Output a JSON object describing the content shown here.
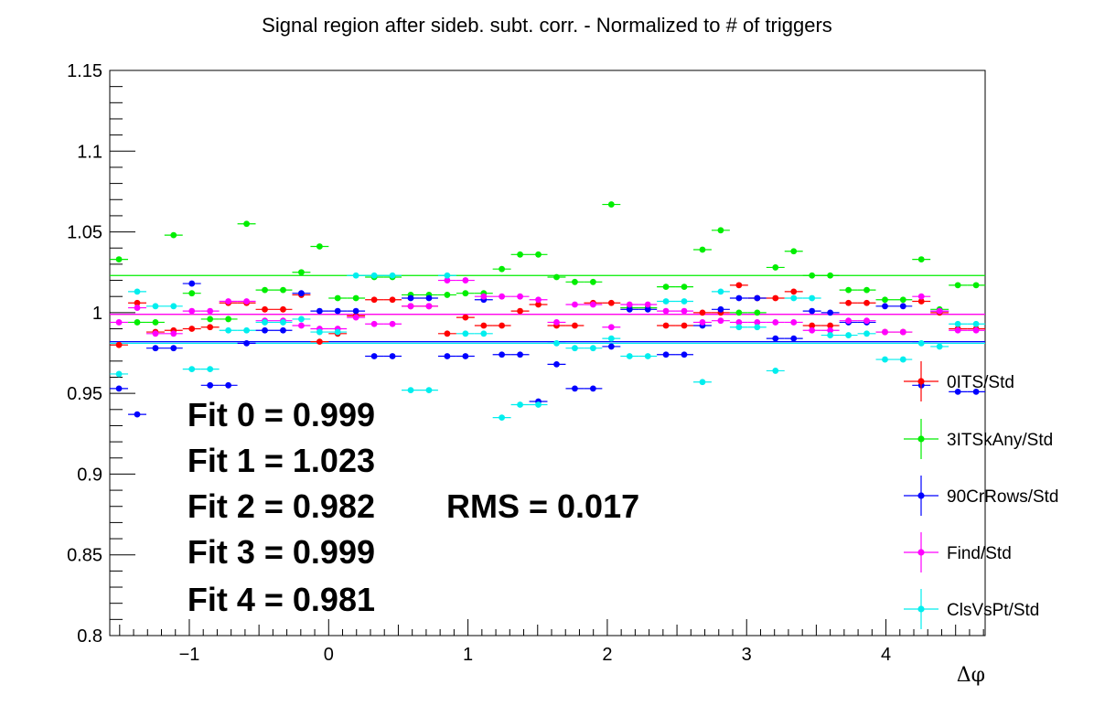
{
  "chart_data": {
    "type": "scatter",
    "title": "Signal region after sideb. subt. corr. - Normalized to # of triggers",
    "xlabel": "Δφ",
    "ylabel": "",
    "xlim": [
      -1.571,
      4.712
    ],
    "ylim": [
      0.8,
      1.15
    ],
    "x_major_ticks": [
      -1,
      0,
      1,
      2,
      3,
      4
    ],
    "x_tick_labels": [
      "−1",
      "0",
      "1",
      "2",
      "3",
      "4"
    ],
    "y_major_ticks": [
      0.8,
      0.85,
      0.9,
      0.95,
      1.0,
      1.05,
      1.1,
      1.15
    ],
    "y_tick_labels": [
      "0.8",
      "0.85",
      "0.9",
      "0.95",
      "1",
      "1.05",
      "1.1",
      "1.15"
    ],
    "bin_half_width": 0.0654,
    "x": [
      -1.505,
      -1.374,
      -1.243,
      -1.113,
      -0.982,
      -0.851,
      -0.72,
      -0.589,
      -0.458,
      -0.327,
      -0.196,
      -0.065,
      0.065,
      0.196,
      0.327,
      0.458,
      0.589,
      0.72,
      0.851,
      0.982,
      1.113,
      1.243,
      1.374,
      1.505,
      1.636,
      1.767,
      1.898,
      2.029,
      2.16,
      2.291,
      2.421,
      2.552,
      2.683,
      2.814,
      2.945,
      3.076,
      3.207,
      3.338,
      3.469,
      3.6,
      3.731,
      3.862,
      3.993,
      4.123,
      4.254,
      4.385,
      4.516,
      4.647
    ],
    "series": [
      {
        "name": "0ITS/Std",
        "color": "#ff0000",
        "fit": 0.999,
        "values": [
          0.98,
          1.006,
          0.988,
          0.989,
          0.99,
          0.991,
          1.006,
          1.006,
          1.002,
          1.002,
          1.011,
          0.982,
          0.987,
          0.998,
          1.008,
          1.008,
          1.004,
          1.004,
          0.987,
          0.997,
          0.992,
          0.992,
          1.001,
          1.005,
          0.992,
          0.992,
          1.006,
          1.006,
          1.003,
          1.003,
          0.992,
          0.992,
          1.0,
          1.0,
          1.017,
          1.009,
          1.009,
          1.013,
          0.992,
          0.992,
          1.006,
          1.006,
          0.988,
          0.988,
          1.007,
          1.0,
          0.99,
          0.99
        ]
      },
      {
        "name": "3ITSkAny/Std",
        "color": "#00ee00",
        "fit": 1.023,
        "values": [
          1.033,
          0.994,
          0.994,
          1.048,
          1.012,
          0.996,
          0.996,
          1.055,
          1.014,
          1.014,
          1.025,
          1.041,
          1.009,
          1.009,
          1.022,
          1.022,
          1.011,
          1.011,
          1.011,
          1.012,
          1.012,
          1.027,
          1.036,
          1.036,
          1.022,
          1.019,
          1.019,
          1.067,
          1.003,
          1.003,
          1.016,
          1.016,
          1.039,
          1.051,
          1.0,
          1.0,
          1.028,
          1.038,
          1.023,
          1.023,
          1.014,
          1.014,
          1.008,
          1.008,
          1.033,
          1.002,
          1.017,
          1.017
        ]
      },
      {
        "name": "90CrRows/Std",
        "color": "#0000ff",
        "fit": 0.982,
        "values": [
          0.953,
          0.937,
          0.978,
          0.978,
          1.018,
          0.955,
          0.955,
          0.981,
          0.989,
          0.989,
          1.012,
          1.001,
          1.001,
          1.001,
          0.973,
          0.973,
          1.009,
          1.009,
          0.973,
          0.973,
          1.008,
          0.974,
          0.974,
          0.945,
          0.968,
          0.953,
          0.953,
          0.979,
          1.002,
          1.002,
          0.974,
          0.974,
          0.992,
          1.002,
          1.009,
          1.009,
          0.984,
          0.984,
          1.001,
          1.0,
          0.994,
          0.994,
          1.004,
          1.004,
          0.955,
          1.001,
          0.951,
          0.951
        ]
      },
      {
        "name": "Find/Std",
        "color": "#ff00ff",
        "fit": 0.999,
        "values": [
          0.994,
          1.003,
          0.987,
          0.987,
          1.001,
          1.001,
          1.007,
          1.007,
          0.995,
          0.995,
          0.992,
          0.99,
          0.99,
          0.997,
          0.993,
          0.993,
          1.004,
          1.004,
          1.02,
          1.02,
          1.01,
          1.01,
          1.01,
          1.008,
          0.994,
          1.005,
          1.005,
          0.991,
          1.005,
          1.005,
          1.001,
          1.001,
          0.994,
          0.995,
          0.994,
          0.994,
          0.994,
          0.994,
          0.989,
          0.989,
          0.995,
          0.995,
          0.988,
          0.988,
          1.01,
          1.001,
          0.989,
          0.989
        ]
      },
      {
        "name": "ClsVsPt/Std",
        "color": "#00eeee",
        "fit": 0.981,
        "values": [
          0.962,
          1.013,
          1.004,
          1.004,
          0.965,
          0.965,
          0.989,
          0.989,
          0.994,
          0.994,
          0.996,
          0.988,
          0.988,
          1.023,
          1.023,
          1.023,
          0.952,
          0.952,
          1.023,
          0.987,
          0.987,
          0.935,
          0.943,
          0.943,
          0.981,
          0.978,
          0.978,
          0.984,
          0.973,
          0.973,
          1.007,
          1.007,
          0.957,
          1.013,
          0.991,
          0.991,
          0.964,
          1.009,
          1.009,
          0.986,
          0.986,
          0.987,
          0.971,
          0.971,
          0.981,
          0.979,
          0.993,
          0.993
        ]
      }
    ],
    "fit_labels": [
      "Fit 0 = 0.999",
      "Fit 1 = 1.023",
      "Fit 2 = 0.982",
      "Fit 3 = 0.999",
      "Fit 4 = 0.981"
    ],
    "rms_label": "RMS = 0.017",
    "legend_placement": "right",
    "grid": false
  }
}
